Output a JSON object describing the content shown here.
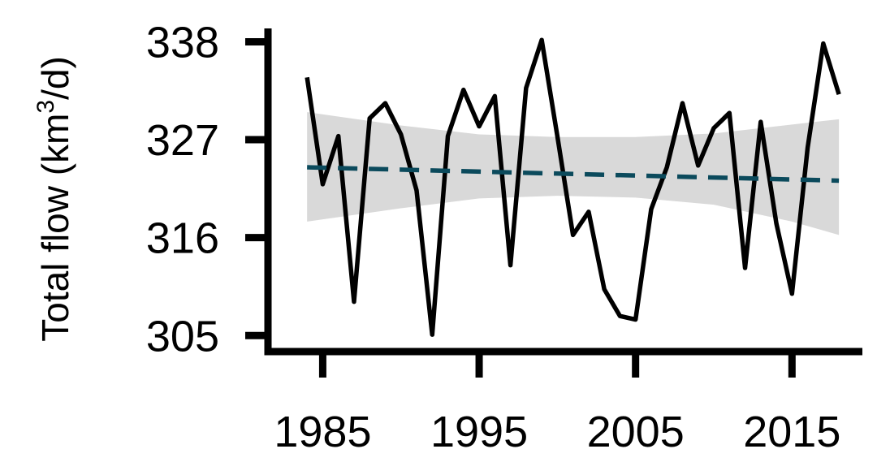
{
  "chart_data": {
    "type": "line",
    "ylabel": "Total flow (km",
    "ylabel_sup": "3",
    "ylabel_tail": "/d)",
    "xlim": [
      1981.5,
      2019.5
    ],
    "ylim": [
      303.2,
      339.5
    ],
    "xticks": [
      1985,
      1995,
      2005,
      2015
    ],
    "xtick_labels": [
      "1985",
      "1995",
      "2005",
      "2015"
    ],
    "yticks": [
      305,
      316,
      327,
      338
    ],
    "ytick_labels": [
      "305",
      "316",
      "327",
      "338"
    ],
    "grid": false,
    "series": [
      {
        "style": "solid",
        "color": "#000000",
        "x": [
          1984,
          1985,
          1986,
          1987,
          1988,
          1989,
          1990,
          1991,
          1992,
          1993,
          1994,
          1995,
          1996,
          1997,
          1998,
          1999,
          2000,
          2001,
          2002,
          2003,
          2004,
          2005,
          2006,
          2007,
          2008,
          2009,
          2010,
          2011,
          2012,
          2013,
          2014,
          2015,
          2016,
          2017,
          2018
        ],
        "y": [
          334.0,
          322.0,
          327.4,
          308.8,
          329.4,
          331.1,
          327.6,
          321.3,
          305.1,
          327.4,
          332.6,
          328.5,
          331.9,
          312.9,
          332.8,
          338.2,
          327.4,
          316.3,
          318.9,
          310.2,
          307.2,
          306.8,
          319.2,
          323.9,
          331.1,
          324.1,
          328.3,
          330.0,
          312.6,
          329.0,
          317.6,
          309.7,
          326.1,
          337.8,
          332.1
        ]
      },
      {
        "style": "dashed",
        "color": "#0b4a5c",
        "x": [
          1984,
          2018
        ],
        "y": [
          323.9,
          322.4
        ]
      }
    ],
    "ribbon": {
      "color": "#d9d9d9",
      "x": [
        1984,
        1990,
        1995,
        2000,
        2005,
        2010,
        2015,
        2018
      ],
      "lower": [
        317.8,
        319.3,
        320.4,
        320.7,
        320.5,
        319.7,
        317.8,
        316.3
      ],
      "upper": [
        330.1,
        328.6,
        327.6,
        327.3,
        327.3,
        327.7,
        328.7,
        329.3
      ]
    }
  }
}
